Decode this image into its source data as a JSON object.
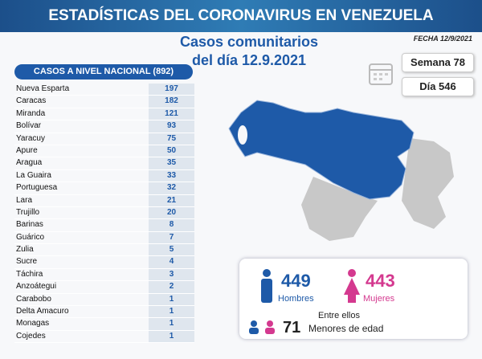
{
  "header": {
    "title": "ESTADÍSTICAS DEL CORONAVIRUS EN VENEZUELA",
    "date": "FECHA 12/9/2021"
  },
  "subtitle": {
    "line1": "Casos comunitarios",
    "line2": "del día 12.9.2021"
  },
  "badges": {
    "week": "Semana 78",
    "day": "Día 546"
  },
  "table": {
    "title": "CASOS A NIVEL NACIONAL (892)",
    "rows": [
      [
        "Nueva Esparta",
        197
      ],
      [
        "Caracas",
        182
      ],
      [
        "Miranda",
        121
      ],
      [
        "Bolívar",
        93
      ],
      [
        "Yaracuy",
        75
      ],
      [
        "Apure",
        50
      ],
      [
        "Aragua",
        35
      ],
      [
        "La Guaira",
        33
      ],
      [
        "Portuguesa",
        32
      ],
      [
        "Lara",
        21
      ],
      [
        "Trujillo",
        20
      ],
      [
        "Barinas",
        8
      ],
      [
        "Guárico",
        7
      ],
      [
        "Zulia",
        5
      ],
      [
        "Sucre",
        4
      ],
      [
        "Táchira",
        3
      ],
      [
        "Anzoátegui",
        2
      ],
      [
        "Carabobo",
        1
      ],
      [
        "Delta Amacuro",
        1
      ],
      [
        "Monagas",
        1
      ],
      [
        "Cojedes",
        1
      ]
    ]
  },
  "gender": {
    "men": 449,
    "men_label": "Hombres",
    "women": 443,
    "women_label": "Mujeres",
    "among": "Entre ellos",
    "minors": 71,
    "minors_label": "Menores de edad"
  }
}
